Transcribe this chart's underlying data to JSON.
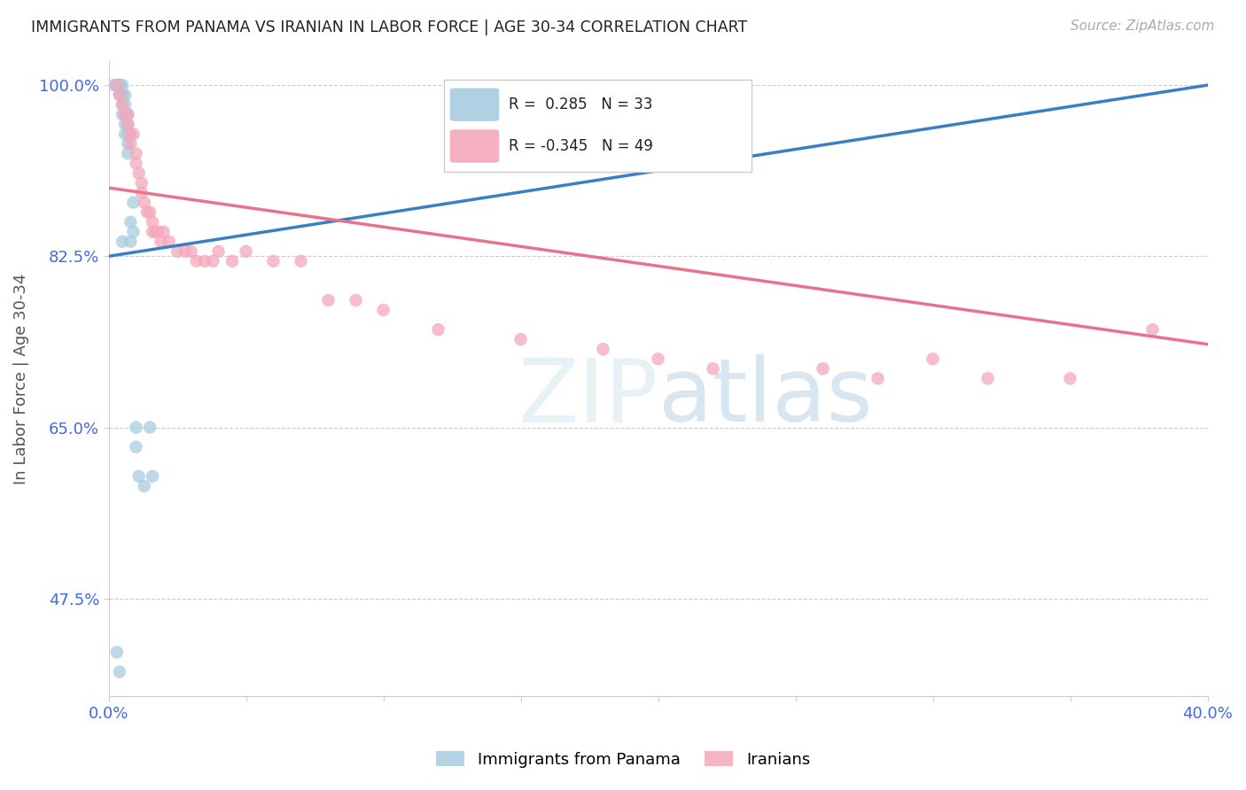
{
  "title": "IMMIGRANTS FROM PANAMA VS IRANIAN IN LABOR FORCE | AGE 30-34 CORRELATION CHART",
  "source": "Source: ZipAtlas.com",
  "ylabel": "In Labor Force | Age 30-34",
  "xlim": [
    0.0,
    0.4
  ],
  "ylim": [
    0.375,
    1.025
  ],
  "yticks": [
    0.475,
    0.65,
    0.825,
    1.0
  ],
  "ytick_labels": [
    "47.5%",
    "65.0%",
    "82.5%",
    "100.0%"
  ],
  "xtick_positions": [
    0.0,
    0.05,
    0.1,
    0.15,
    0.2,
    0.25,
    0.3,
    0.35,
    0.4
  ],
  "blue_R": 0.285,
  "blue_N": 33,
  "pink_R": -0.345,
  "pink_N": 49,
  "blue_color": "#a8cce0",
  "pink_color": "#f4a8bb",
  "blue_line_color": "#3a7fc1",
  "pink_line_color": "#e8728a",
  "legend_label_blue": "Immigrants from Panama",
  "legend_label_pink": "Iranians",
  "watermark_zip": "ZIP",
  "watermark_atlas": "atlas",
  "title_color": "#222222",
  "axis_label_color": "#555555",
  "tick_label_color": "#4169e1",
  "blue_x": [
    0.002,
    0.003,
    0.004,
    0.004,
    0.004,
    0.005,
    0.005,
    0.005,
    0.005,
    0.005,
    0.006,
    0.006,
    0.006,
    0.006,
    0.006,
    0.007,
    0.007,
    0.007,
    0.007,
    0.007,
    0.008,
    0.008,
    0.009,
    0.009,
    0.01,
    0.01,
    0.011,
    0.013,
    0.015,
    0.016,
    0.003,
    0.004,
    0.005
  ],
  "blue_y": [
    1.0,
    1.0,
    1.0,
    1.0,
    0.99,
    1.0,
    0.99,
    0.99,
    0.98,
    0.97,
    0.99,
    0.98,
    0.97,
    0.96,
    0.95,
    0.97,
    0.96,
    0.95,
    0.94,
    0.93,
    0.86,
    0.84,
    0.88,
    0.85,
    0.65,
    0.63,
    0.6,
    0.59,
    0.65,
    0.6,
    0.42,
    0.4,
    0.84
  ],
  "pink_x": [
    0.003,
    0.004,
    0.005,
    0.006,
    0.007,
    0.007,
    0.008,
    0.008,
    0.009,
    0.01,
    0.01,
    0.011,
    0.012,
    0.012,
    0.013,
    0.014,
    0.015,
    0.016,
    0.016,
    0.017,
    0.018,
    0.019,
    0.02,
    0.022,
    0.025,
    0.028,
    0.03,
    0.032,
    0.035,
    0.038,
    0.04,
    0.045,
    0.05,
    0.06,
    0.07,
    0.08,
    0.09,
    0.1,
    0.12,
    0.15,
    0.18,
    0.2,
    0.22,
    0.26,
    0.28,
    0.3,
    0.32,
    0.35,
    0.38
  ],
  "pink_y": [
    1.0,
    0.99,
    0.98,
    0.97,
    0.97,
    0.96,
    0.95,
    0.94,
    0.95,
    0.93,
    0.92,
    0.91,
    0.9,
    0.89,
    0.88,
    0.87,
    0.87,
    0.86,
    0.85,
    0.85,
    0.85,
    0.84,
    0.85,
    0.84,
    0.83,
    0.83,
    0.83,
    0.82,
    0.82,
    0.82,
    0.83,
    0.82,
    0.83,
    0.82,
    0.82,
    0.78,
    0.78,
    0.77,
    0.75,
    0.74,
    0.73,
    0.72,
    0.71,
    0.71,
    0.7,
    0.72,
    0.7,
    0.7,
    0.75
  ],
  "blue_trend_x": [
    0.0,
    0.4
  ],
  "blue_trend_y": [
    0.825,
    1.0
  ],
  "pink_trend_x": [
    0.0,
    0.4
  ],
  "pink_trend_y": [
    0.895,
    0.735
  ]
}
